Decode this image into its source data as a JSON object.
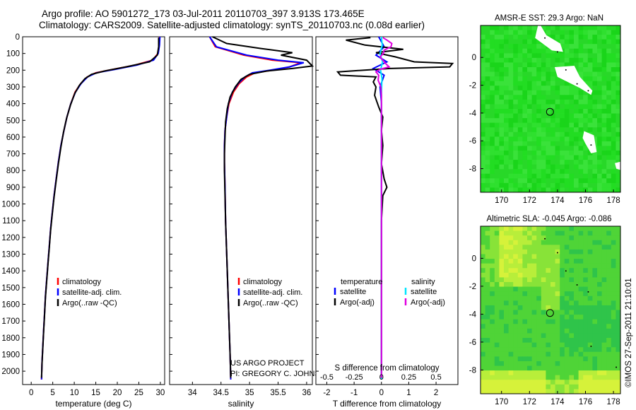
{
  "header": {
    "line1": "Argo profile: AO 5901272_173 03-Jul-2011 20110703_397 3.913S 173.465E",
    "line2": "Climatology: CARS2009. Satellite-adjusted climatology: synTS_20110703.nc (0.08d earlier)"
  },
  "chart_data": [
    {
      "id": "temperature",
      "type": "line",
      "xlabel": "temperature (deg C)",
      "ylabel": "",
      "xlim": [
        -2,
        31
      ],
      "ylim": [
        2080,
        0
      ],
      "xticks": [
        0,
        5,
        10,
        15,
        20,
        25,
        30
      ],
      "yticks": [
        0,
        100,
        200,
        300,
        400,
        500,
        600,
        700,
        800,
        900,
        1000,
        1100,
        1200,
        1300,
        1400,
        1500,
        1600,
        1700,
        1800,
        1900,
        2000
      ],
      "legend": [
        "climatology",
        "satellite-adj. clim.",
        "Argo(..raw -QC)"
      ],
      "series": [
        {
          "name": "climatology",
          "color": "#ff0000",
          "points": [
            [
              29.8,
              0
            ],
            [
              29.7,
              50
            ],
            [
              29.4,
              100
            ],
            [
              28.2,
              140
            ],
            [
              24,
              170
            ],
            [
              19,
              195
            ],
            [
              15,
              215
            ],
            [
              13,
              240
            ],
            [
              11.5,
              280
            ],
            [
              10.2,
              330
            ],
            [
              9.2,
              400
            ],
            [
              8.3,
              480
            ],
            [
              7.6,
              560
            ],
            [
              6.9,
              650
            ],
            [
              6.3,
              750
            ],
            [
              5.8,
              850
            ],
            [
              5.3,
              950
            ],
            [
              4.9,
              1050
            ],
            [
              4.5,
              1150
            ],
            [
              4.2,
              1250
            ],
            [
              3.9,
              1350
            ],
            [
              3.6,
              1450
            ],
            [
              3.3,
              1550
            ],
            [
              3.1,
              1650
            ],
            [
              2.9,
              1750
            ],
            [
              2.7,
              1850
            ],
            [
              2.5,
              1950
            ],
            [
              2.4,
              2050
            ]
          ]
        },
        {
          "name": "satellite-adj. clim.",
          "color": "#0000ff",
          "points": [
            [
              29.9,
              0
            ],
            [
              29.8,
              50
            ],
            [
              29.5,
              100
            ],
            [
              28.4,
              140
            ],
            [
              24.5,
              170
            ],
            [
              19.5,
              195
            ],
            [
              15.2,
              215
            ],
            [
              13.1,
              240
            ],
            [
              11.6,
              280
            ],
            [
              10.3,
              330
            ],
            [
              9.2,
              400
            ],
            [
              8.3,
              480
            ],
            [
              7.6,
              560
            ],
            [
              6.9,
              650
            ],
            [
              6.3,
              750
            ],
            [
              5.8,
              850
            ],
            [
              5.3,
              950
            ],
            [
              4.9,
              1050
            ],
            [
              4.5,
              1150
            ],
            [
              4.2,
              1250
            ],
            [
              3.9,
              1350
            ],
            [
              3.6,
              1450
            ],
            [
              3.3,
              1550
            ],
            [
              3.1,
              1650
            ],
            [
              2.9,
              1750
            ],
            [
              2.7,
              1850
            ],
            [
              2.5,
              1950
            ],
            [
              2.4,
              2050
            ]
          ]
        },
        {
          "name": "Argo(..raw -QC)",
          "color": "#000000",
          "points": [
            [
              29.6,
              5
            ],
            [
              29.6,
              60
            ],
            [
              29.3,
              110
            ],
            [
              27.5,
              150
            ],
            [
              22,
              180
            ],
            [
              17,
              205
            ],
            [
              14,
              225
            ],
            [
              12.5,
              250
            ],
            [
              11.2,
              290
            ],
            [
              10.1,
              340
            ],
            [
              9.1,
              410
            ],
            [
              8.2,
              490
            ],
            [
              7.5,
              570
            ],
            [
              6.9,
              660
            ],
            [
              6.3,
              760
            ],
            [
              5.8,
              860
            ],
            [
              5.3,
              960
            ],
            [
              4.9,
              1060
            ],
            [
              4.5,
              1160
            ],
            [
              4.2,
              1260
            ],
            [
              3.9,
              1360
            ],
            [
              3.6,
              1460
            ],
            [
              3.3,
              1560
            ],
            [
              3.1,
              1660
            ],
            [
              2.9,
              1760
            ],
            [
              2.7,
              1860
            ],
            [
              2.5,
              1960
            ],
            [
              2.4,
              2040
            ]
          ]
        }
      ]
    },
    {
      "id": "salinity",
      "type": "line",
      "xlabel": "salinity",
      "xlim": [
        33.6,
        36.1
      ],
      "ylim": [
        2080,
        0
      ],
      "xticks": [
        34,
        34.5,
        35,
        35.5,
        36
      ],
      "legend": [
        "climatology",
        "satellite-adj. clim.",
        "Argo(..raw -QC)"
      ],
      "annotation": [
        "US ARGO PROJECT",
        "PI: GREGORY C. JOHNSON"
      ],
      "series": [
        {
          "name": "climatology",
          "color": "#ff0000",
          "points": [
            [
              34.3,
              0
            ],
            [
              34.4,
              60
            ],
            [
              34.9,
              110
            ],
            [
              35.4,
              140
            ],
            [
              35.9,
              155
            ],
            [
              35.7,
              180
            ],
            [
              35.4,
              200
            ],
            [
              35.1,
              215
            ],
            [
              34.95,
              240
            ],
            [
              34.82,
              280
            ],
            [
              34.72,
              330
            ],
            [
              34.64,
              400
            ],
            [
              34.6,
              480
            ],
            [
              34.57,
              560
            ],
            [
              34.56,
              650
            ],
            [
              34.56,
              750
            ],
            [
              34.57,
              900
            ],
            [
              34.58,
              1100
            ],
            [
              34.6,
              1300
            ],
            [
              34.62,
              1500
            ],
            [
              34.64,
              1700
            ],
            [
              34.66,
              1900
            ],
            [
              34.67,
              2050
            ]
          ]
        },
        {
          "name": "satellite-adj. clim.",
          "color": "#0000ff",
          "points": [
            [
              34.3,
              0
            ],
            [
              34.42,
              60
            ],
            [
              34.95,
              110
            ],
            [
              35.5,
              140
            ],
            [
              35.95,
              155
            ],
            [
              35.7,
              180
            ],
            [
              35.35,
              200
            ],
            [
              35.05,
              215
            ],
            [
              34.92,
              240
            ],
            [
              34.8,
              280
            ],
            [
              34.7,
              330
            ],
            [
              34.63,
              400
            ],
            [
              34.6,
              480
            ],
            [
              34.57,
              560
            ],
            [
              34.56,
              650
            ],
            [
              34.56,
              750
            ],
            [
              34.57,
              900
            ],
            [
              34.58,
              1100
            ],
            [
              34.6,
              1300
            ],
            [
              34.62,
              1500
            ],
            [
              34.64,
              1700
            ],
            [
              34.66,
              1900
            ],
            [
              34.67,
              2050
            ]
          ]
        },
        {
          "name": "Argo(..raw -QC)",
          "color": "#000000",
          "points": [
            [
              34.35,
              0
            ],
            [
              34.6,
              40
            ],
            [
              35.2,
              70
            ],
            [
              35.75,
              95
            ],
            [
              35.55,
              110
            ],
            [
              36.0,
              140
            ],
            [
              36.1,
              175
            ],
            [
              35.75,
              190
            ],
            [
              35.3,
              205
            ],
            [
              35.0,
              225
            ],
            [
              34.85,
              255
            ],
            [
              34.75,
              300
            ],
            [
              34.66,
              360
            ],
            [
              34.61,
              430
            ],
            [
              34.58,
              510
            ],
            [
              34.57,
              600
            ],
            [
              34.56,
              700
            ],
            [
              34.56,
              800
            ],
            [
              34.57,
              950
            ],
            [
              34.58,
              1100
            ],
            [
              34.6,
              1300
            ],
            [
              34.62,
              1500
            ],
            [
              34.64,
              1700
            ],
            [
              34.66,
              1900
            ],
            [
              34.67,
              2040
            ]
          ]
        }
      ]
    },
    {
      "id": "difference",
      "type": "line",
      "xlabel": "T difference from climatology",
      "xlabel_top": "S difference from climatology",
      "xlim": [
        -2.4,
        2.8
      ],
      "ylim": [
        2080,
        0
      ],
      "xticks": [
        -2,
        -1,
        0,
        1,
        2
      ],
      "xticks_s": [
        "-0.5",
        "-0.25",
        "0",
        "0.25",
        "0.5"
      ],
      "legend_headers": [
        "temperature",
        "salinity"
      ],
      "legend": [
        "satellite",
        "Argo(-adj)",
        "satellite",
        "Argo(-adj)"
      ],
      "series": [
        {
          "name": "temperature satellite",
          "color": "#0000ff",
          "points": [
            [
              -0.1,
              0
            ],
            [
              0.1,
              60
            ],
            [
              -0.2,
              110
            ],
            [
              0.2,
              150
            ],
            [
              -0.3,
              190
            ],
            [
              0.1,
              230
            ],
            [
              -0.05,
              300
            ],
            [
              0,
              400
            ],
            [
              0,
              600
            ],
            [
              0,
              900
            ],
            [
              0,
              1200
            ],
            [
              0,
              1600
            ],
            [
              0,
              2050
            ]
          ]
        },
        {
          "name": "temperature Argo(-adj)",
          "color": "#000000",
          "points": [
            [
              -0.4,
              5
            ],
            [
              -1.3,
              20
            ],
            [
              -0.6,
              50
            ],
            [
              0.8,
              75
            ],
            [
              -0.2,
              95
            ],
            [
              0.5,
              120
            ],
            [
              1.2,
              150
            ],
            [
              2.6,
              160
            ],
            [
              2.5,
              180
            ],
            [
              0.3,
              190
            ],
            [
              -1.6,
              210
            ],
            [
              -1.5,
              230
            ],
            [
              -0.2,
              240
            ],
            [
              -0.3,
              270
            ],
            [
              -0.2,
              300
            ],
            [
              -0.25,
              350
            ],
            [
              -0.1,
              420
            ],
            [
              0.05,
              480
            ],
            [
              0.0,
              560
            ],
            [
              0.05,
              650
            ],
            [
              0.0,
              760
            ],
            [
              0.1,
              850
            ],
            [
              0.2,
              900
            ],
            [
              0.05,
              950
            ],
            [
              0.0,
              1100
            ],
            [
              0.0,
              1300
            ],
            [
              0.0,
              1600
            ],
            [
              0.0,
              2040
            ]
          ]
        },
        {
          "name": "salinity satellite",
          "color": "#00e5ff",
          "points": [
            [
              0,
              0
            ],
            [
              0.03,
              50
            ],
            [
              -0.05,
              100
            ],
            [
              0.04,
              150
            ],
            [
              -0.03,
              200
            ],
            [
              0.02,
              250
            ],
            [
              0,
              350
            ],
            [
              0,
              500
            ],
            [
              0,
              800
            ],
            [
              0,
              1200
            ],
            [
              0,
              1600
            ],
            [
              0,
              2050
            ]
          ]
        },
        {
          "name": "salinity Argo(-adj)",
          "color": "#e000e0",
          "points": [
            [
              0.05,
              5
            ],
            [
              0.2,
              20
            ],
            [
              0.38,
              40
            ],
            [
              0.35,
              60
            ],
            [
              0.1,
              80
            ],
            [
              0.07,
              100
            ],
            [
              -0.05,
              120
            ],
            [
              0.15,
              160
            ],
            [
              0.28,
              180
            ],
            [
              -0.05,
              195
            ],
            [
              -0.2,
              210
            ],
            [
              -0.1,
              230
            ],
            [
              -0.12,
              260
            ],
            [
              -0.02,
              300
            ],
            [
              0,
              350
            ],
            [
              0,
              500
            ],
            [
              0,
              800
            ],
            [
              0,
              1200
            ],
            [
              0,
              1600
            ],
            [
              0,
              2040
            ]
          ]
        }
      ]
    },
    {
      "id": "sst-map",
      "type": "heatmap",
      "title": "AMSR-E SST: 29.3 Argo: NaN",
      "xlim": [
        168.5,
        178.5
      ],
      "ylim": [
        -9.7,
        2.3
      ],
      "xticks": [
        170,
        172,
        174,
        176,
        178
      ],
      "yticks": [
        0,
        -2,
        -4,
        -6,
        -8
      ],
      "marker": {
        "lon": 173.465,
        "lat": -3.913
      }
    },
    {
      "id": "sla-map",
      "type": "heatmap",
      "title": "Altimetric SLA: -0.045 Argo: -0.086",
      "xlim": [
        168.5,
        178.5
      ],
      "ylim": [
        -9.7,
        2.3
      ],
      "xticks": [
        170,
        172,
        174,
        176,
        178
      ],
      "yticks": [
        0,
        -2,
        -4,
        -6,
        -8
      ],
      "marker": {
        "lon": 173.465,
        "lat": -3.913
      }
    }
  ],
  "footer": {
    "credit": "©IMOS 27-Sep-2011 21:10:01"
  }
}
